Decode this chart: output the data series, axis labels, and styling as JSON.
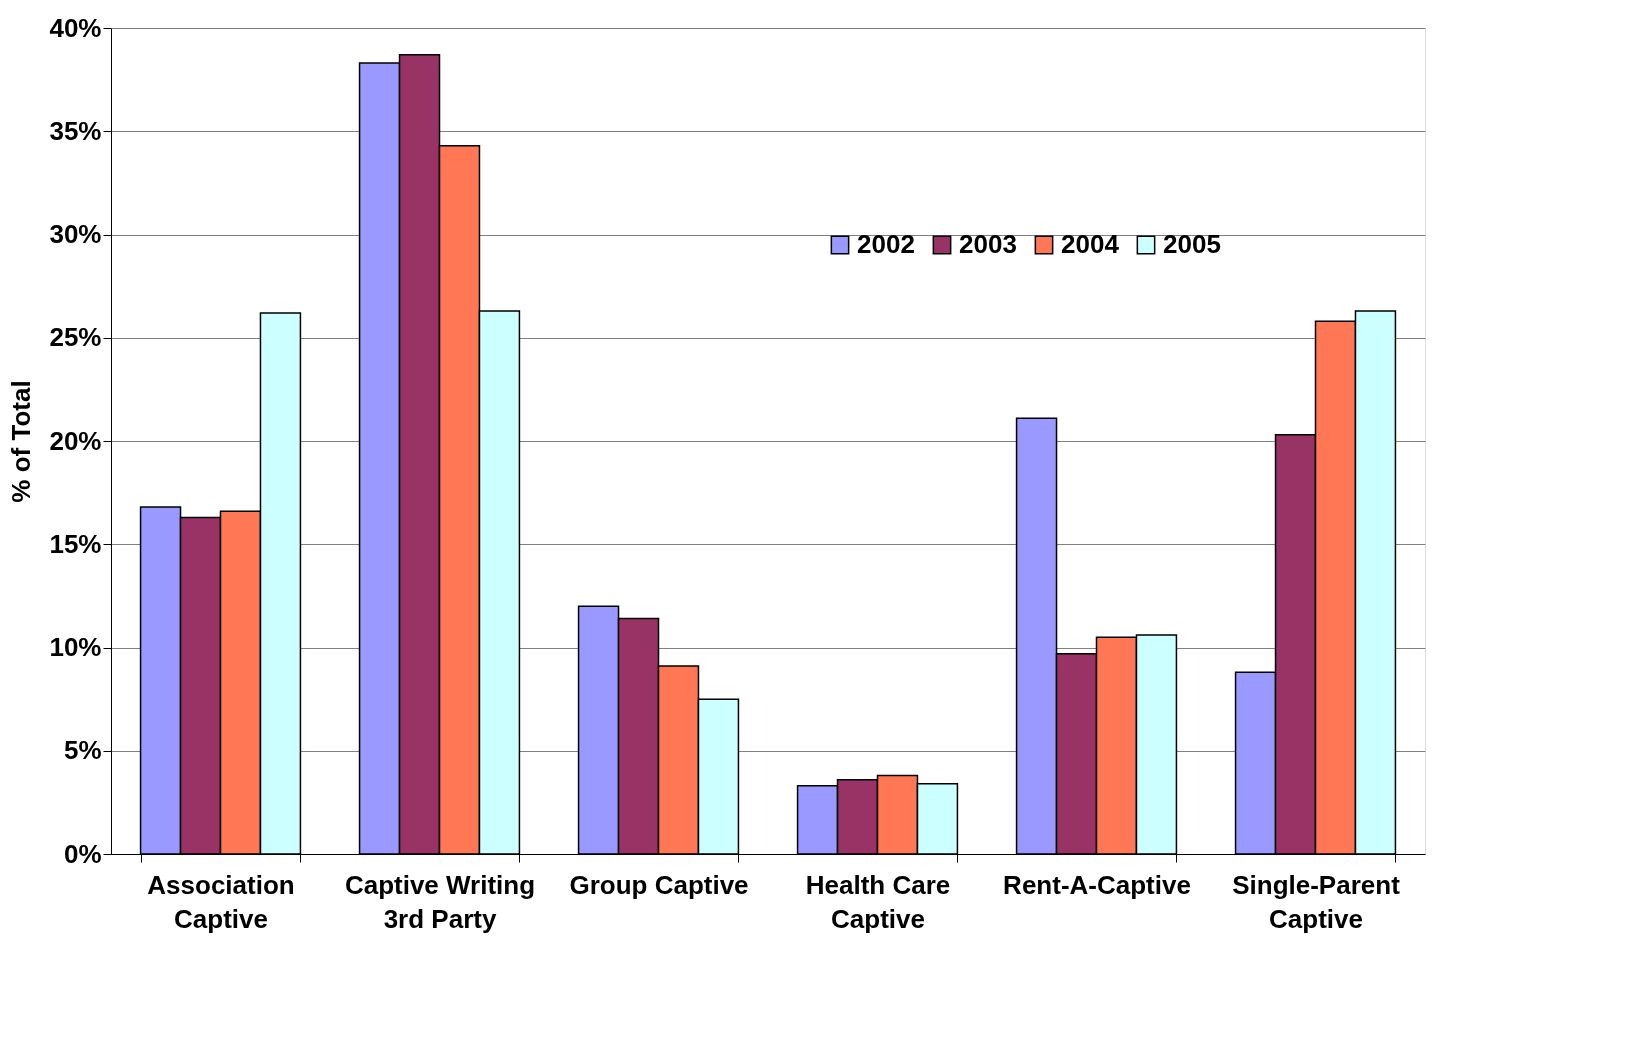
{
  "chart_data": {
    "type": "bar",
    "ylabel": "% of Total",
    "categories": [
      "Association\nCaptive",
      "Captive Writing\n3rd Party",
      "Group Captive",
      "Health Care\nCaptive",
      "Rent-A-Captive",
      "Single-Parent\nCaptive"
    ],
    "series": [
      {
        "name": "2002",
        "color": "#9999ff",
        "values": [
          16.8,
          38.3,
          12.0,
          3.3,
          21.1,
          8.8
        ]
      },
      {
        "name": "2003",
        "color": "#993366",
        "values": [
          16.3,
          38.7,
          11.4,
          3.6,
          9.7,
          20.3
        ]
      },
      {
        "name": "2004",
        "color": "#ff7755",
        "values": [
          16.6,
          34.3,
          9.1,
          3.8,
          10.5,
          25.8
        ]
      },
      {
        "name": "2005",
        "color": "#ccffff",
        "values": [
          26.2,
          26.3,
          7.5,
          3.4,
          10.6,
          26.3
        ]
      }
    ],
    "ylim": [
      0,
      40
    ],
    "yticks": [
      {
        "value": 0,
        "label": "0%"
      },
      {
        "value": 5,
        "label": "5%"
      },
      {
        "value": 10,
        "label": "10%"
      },
      {
        "value": 15,
        "label": "15%"
      },
      {
        "value": 20,
        "label": "20%"
      },
      {
        "value": 25,
        "label": "25%"
      },
      {
        "value": 30,
        "label": "30%"
      },
      {
        "value": 35,
        "label": "35%"
      },
      {
        "value": 40,
        "label": "40%"
      }
    ],
    "grid": "y",
    "legend": "top right"
  }
}
